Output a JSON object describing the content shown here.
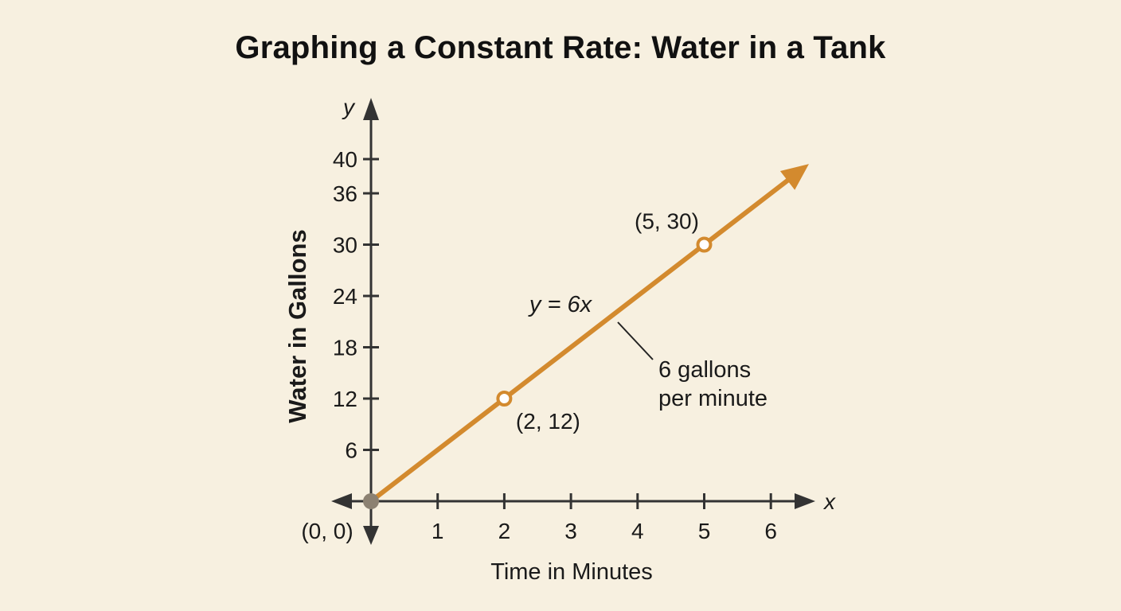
{
  "chart_data": {
    "type": "line",
    "title": "Graphing a Constant Rate: Water in a Tank",
    "xlabel": "Time in Minutes",
    "ylabel": "Water in Gallons",
    "x_axis_letter": "x",
    "y_axis_letter": "y",
    "x_ticks": [
      1,
      2,
      3,
      4,
      5,
      6
    ],
    "y_ticks": [
      6,
      12,
      18,
      24,
      30,
      36,
      40
    ],
    "xlim": [
      0,
      6
    ],
    "ylim": [
      0,
      40
    ],
    "grid": false,
    "series": [
      {
        "equation": "y = 6x",
        "x": [
          0,
          1,
          2,
          3,
          4,
          5,
          6
        ],
        "y": [
          0,
          6,
          12,
          18,
          24,
          30,
          36
        ],
        "color": "#d38a2e"
      }
    ],
    "points": [
      {
        "x": 0,
        "y": 0,
        "label": "(0, 0)",
        "style": "filled"
      },
      {
        "x": 2,
        "y": 12,
        "label": "(2, 12)",
        "style": "open"
      },
      {
        "x": 5,
        "y": 30,
        "label": "(5, 30)",
        "style": "open"
      }
    ],
    "annotations": [
      {
        "text_lines": [
          "6 gallons",
          "per minute"
        ]
      }
    ],
    "colors": {
      "line": "#d38a2e",
      "axis": "#333333",
      "origin": "#8c8172",
      "background": "#f7f0e0"
    }
  }
}
